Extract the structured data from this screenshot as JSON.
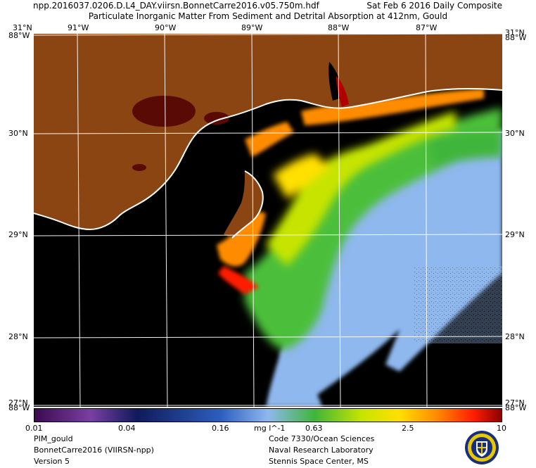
{
  "header": {
    "filename": "npp.2016037.0206.D.L4_DAY.viirsn.BonnetCarre2016.v05.750m.hdf",
    "date_label": "Sat Feb  6 2016 Daily Composite",
    "product_title": "Particulate Inorganic Matter From Sediment and Detrital Absorption at 412nm, Gould"
  },
  "axes": {
    "top_lon_labels": [
      "91°W",
      "90°W",
      "89°W",
      "88°W",
      "87°W"
    ],
    "left_lat_labels": [
      "31°N",
      "30°N",
      "29°N",
      "28°N",
      "27°N"
    ],
    "right_lat_labels": [
      "31°N",
      "30°N",
      "29°N",
      "28°N",
      "27°N"
    ],
    "corner_labels": [
      "88°W",
      "88°W",
      "88°W",
      "88°W"
    ]
  },
  "colorbar": {
    "tick_labels": [
      "0.01",
      "0.04",
      "0.16",
      "0.63",
      "2.5",
      "10"
    ],
    "unit": "mg l^-1"
  },
  "footer": {
    "left": [
      "PIM_gould",
      "BonnetCarre2016 (VIIRSN-npp)",
      "Version 5"
    ],
    "right": [
      "Code 7330/Ocean Sciences",
      "Naval Research Laboratory",
      "Stennis Space Center, MS"
    ]
  },
  "colors": {
    "land": "#8b4513",
    "nodata": "#000000",
    "grid": "#ffffff",
    "scale": [
      "#3b0a4f",
      "#7a3fa3",
      "#101a5a",
      "#2d5fbf",
      "#8fb8ef",
      "#3fb53a",
      "#c6e400",
      "#ffe000",
      "#ff8c00",
      "#ff1e00",
      "#8b0000"
    ]
  },
  "chart_data": {
    "type": "map",
    "projection": "equirectangular",
    "lon_range": [
      -91.5,
      -86.5
    ],
    "lat_range": [
      27.3,
      31.0
    ],
    "variable": "PIM_gould",
    "units": "mg l^-1",
    "color_scale": "log",
    "color_range": [
      0.01,
      10
    ]
  }
}
